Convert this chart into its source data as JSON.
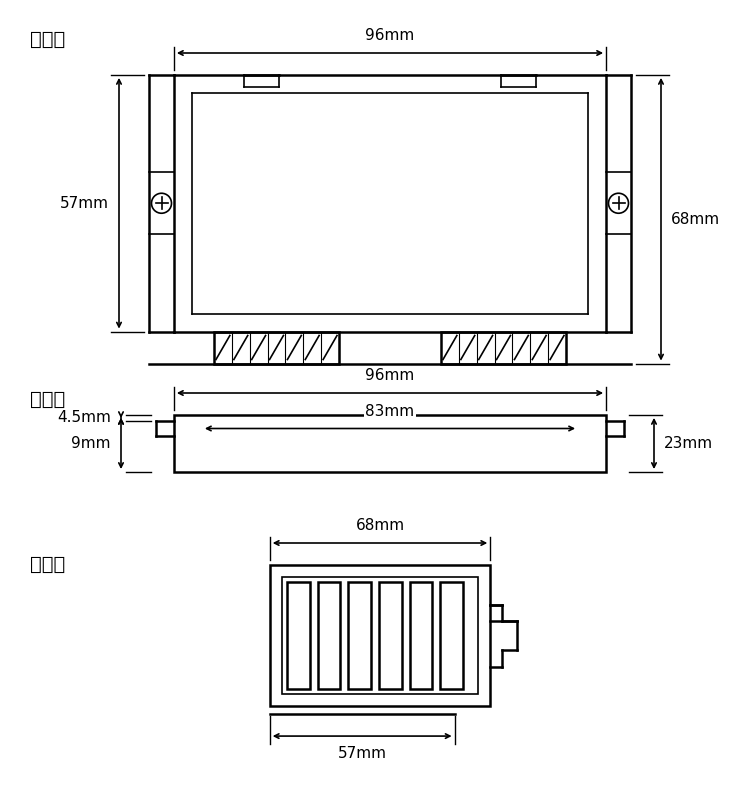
{
  "title_top": "俦视图",
  "title_mid": "背视图",
  "title_bot": "侧视图",
  "bg_color": "#ffffff",
  "line_color": "#000000",
  "dim_96_top": "96mm",
  "dim_57_left": "57mm",
  "dim_68_right": "68mm",
  "dim_96_back": "96mm",
  "dim_83": "83mm",
  "dim_23": "23mm",
  "dim_45": "4.5mm",
  "dim_9": "9mm",
  "dim_68_side": "68mm",
  "dim_57_side": "57mm",
  "font_size_title": 14,
  "font_size_dim": 11
}
